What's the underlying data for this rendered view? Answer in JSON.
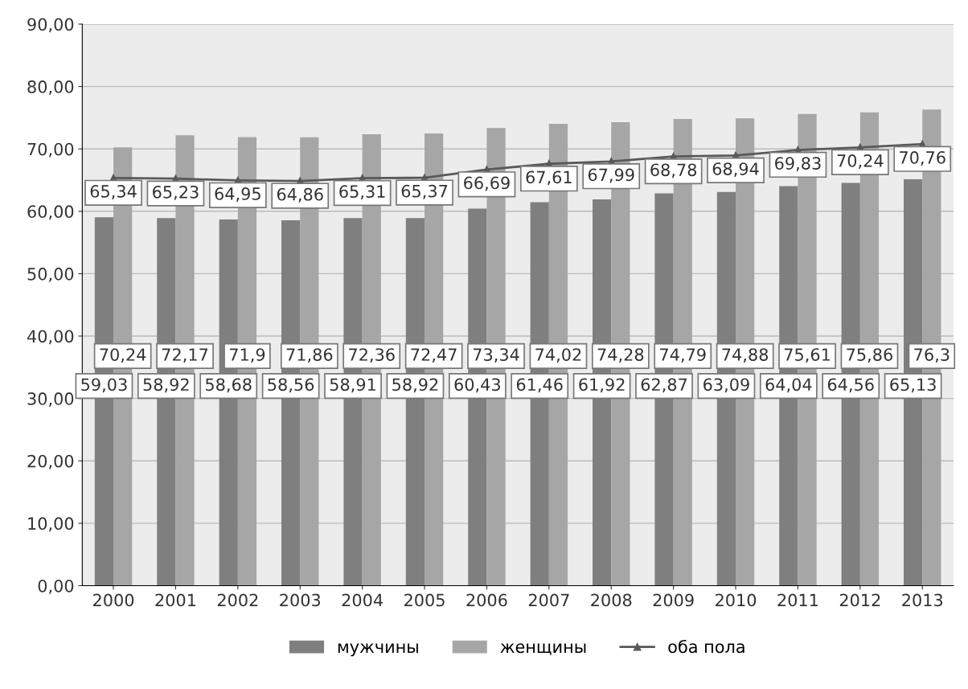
{
  "chart_data": {
    "type": "bar",
    "categories": [
      "2000",
      "2001",
      "2002",
      "2003",
      "2004",
      "2005",
      "2006",
      "2007",
      "2008",
      "2009",
      "2010",
      "2011",
      "2012",
      "2013"
    ],
    "series": [
      {
        "name": "мужчины",
        "color": "#7f7f7f",
        "values": [
          59.03,
          58.92,
          58.68,
          58.56,
          58.91,
          58.92,
          60.43,
          61.46,
          61.92,
          62.87,
          63.09,
          64.04,
          64.56,
          65.13
        ],
        "value_labels": [
          "59,03",
          "58,92",
          "58,68",
          "58,56",
          "58,91",
          "58,92",
          "60,43",
          "61,46",
          "61,92",
          "62,87",
          "63,09",
          "64,04",
          "64,56",
          "65,13"
        ]
      },
      {
        "name": "женщины",
        "color": "#a6a6a6",
        "values": [
          70.24,
          72.17,
          71.9,
          71.86,
          72.36,
          72.47,
          73.34,
          74.02,
          74.28,
          74.79,
          74.88,
          75.61,
          75.86,
          76.3
        ],
        "value_labels": [
          "70,24",
          "72,17",
          "71,9",
          "71,86",
          "72,36",
          "72,47",
          "73,34",
          "74,02",
          "74,28",
          "74,79",
          "74,88",
          "75,61",
          "75,86",
          "76,3"
        ]
      },
      {
        "name": "оба пола",
        "type": "line",
        "marker": "triangle",
        "color": "#595959",
        "values": [
          65.34,
          65.23,
          64.95,
          64.86,
          65.31,
          65.37,
          66.69,
          67.61,
          67.99,
          68.78,
          68.94,
          69.83,
          70.24,
          70.76
        ],
        "value_labels": [
          "65,34",
          "65,23",
          "64,95",
          "64,86",
          "65,31",
          "65,37",
          "66,69",
          "67,61",
          "67,99",
          "68,78",
          "68,94",
          "69,83",
          "70,24",
          "70,76"
        ]
      }
    ],
    "ylim": [
      0,
      90
    ],
    "yticks": [
      {
        "value": 0,
        "label": "0,00"
      },
      {
        "value": 10,
        "label": "10,00"
      },
      {
        "value": 20,
        "label": "20,00"
      },
      {
        "value": 30,
        "label": "30,00"
      },
      {
        "value": 40,
        "label": "40,00"
      },
      {
        "value": 50,
        "label": "50,00"
      },
      {
        "value": 60,
        "label": "60,00"
      },
      {
        "value": 70,
        "label": "70,00"
      },
      {
        "value": 80,
        "label": "80,00"
      },
      {
        "value": 90,
        "label": "90,00"
      }
    ],
    "grid": "y",
    "legend": "bottom"
  }
}
